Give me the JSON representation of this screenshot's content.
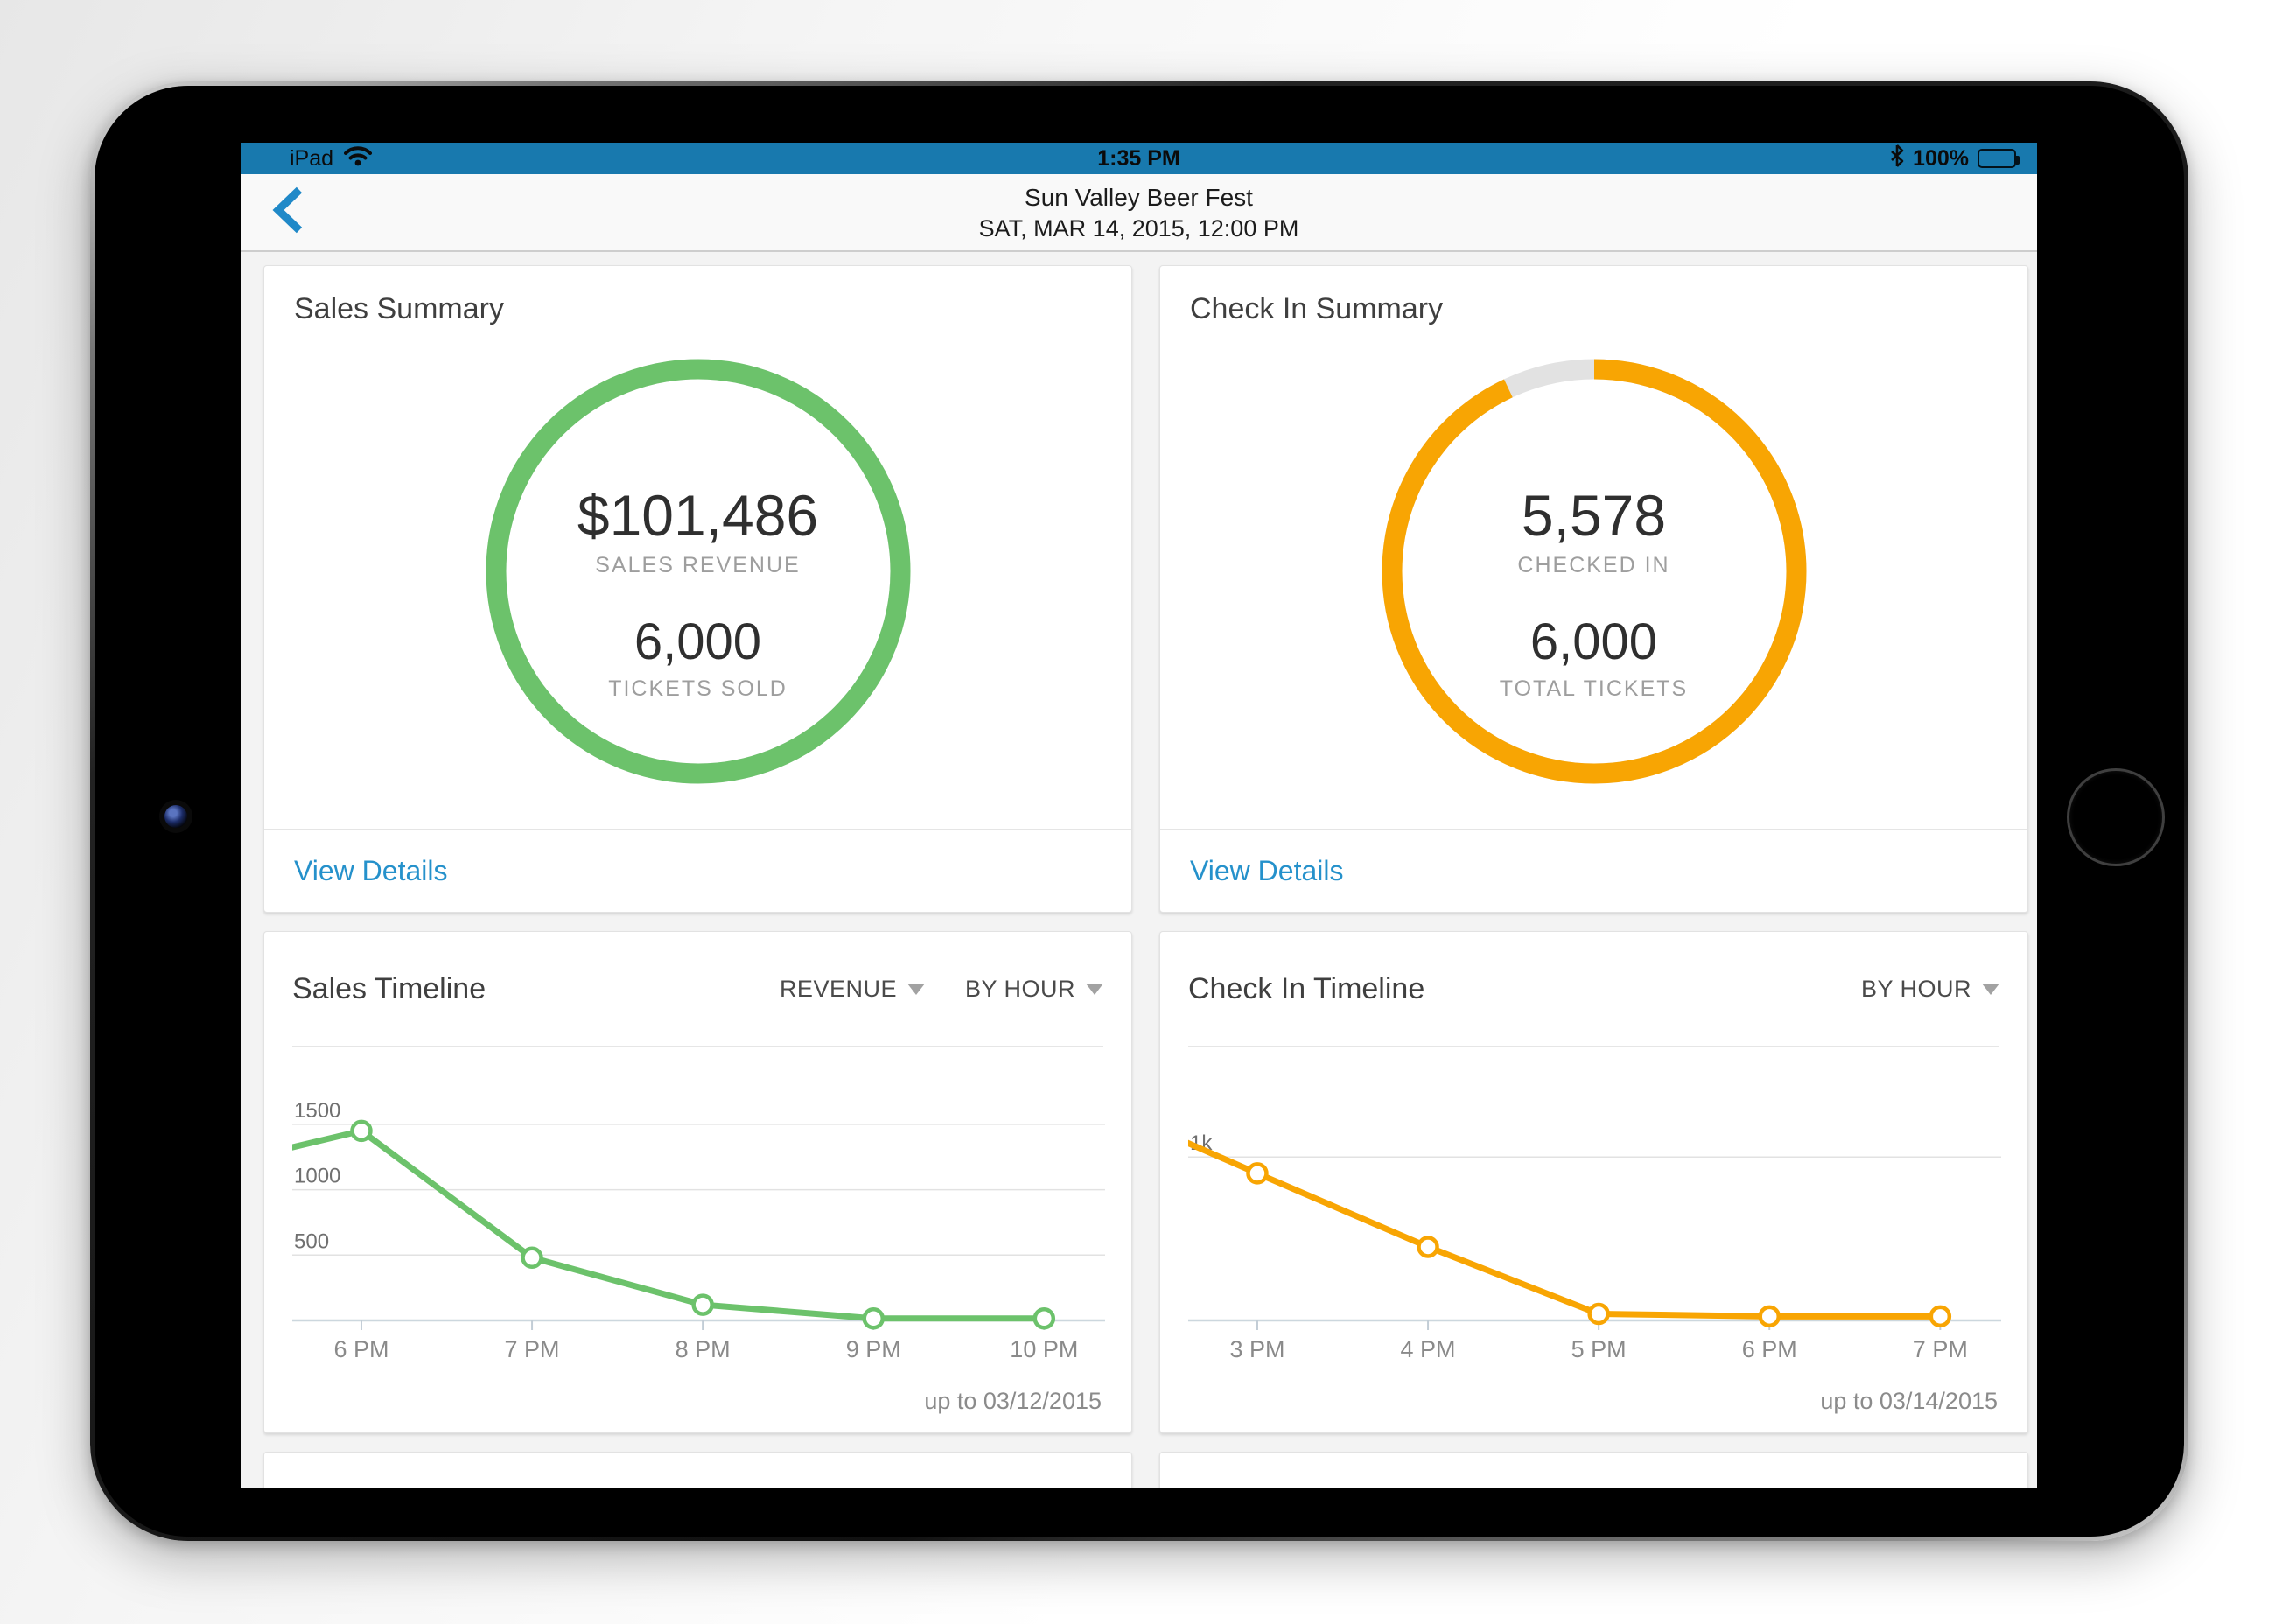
{
  "device": {
    "carrier": "iPad",
    "time": "1:35 PM",
    "battery_percent": "100%"
  },
  "nav": {
    "title": "Sun Valley Beer Fest",
    "subtitle": "SAT, MAR 14, 2015, 12:00 PM"
  },
  "colors": {
    "status_bar_blue": "#1879ae",
    "link_blue": "#2591cb",
    "back_chevron_blue": "#2089c8",
    "sales_green": "#6cc26b",
    "checkin_orange": "#f8a503",
    "ring_track_gray": "#e2e2e2"
  },
  "cards": {
    "sales_summary": {
      "title": "Sales Summary",
      "primary_value": "$101,486",
      "primary_label": "SALES REVENUE",
      "secondary_value": "6,000",
      "secondary_label": "TICKETS SOLD",
      "link_label": "View Details",
      "ring": {
        "color": "#6cc26b",
        "track": "#e2e2e2",
        "progress": 1
      }
    },
    "checkin_summary": {
      "title": "Check In Summary",
      "primary_value": "5,578",
      "primary_label": "CHECKED IN",
      "secondary_value": "6,000",
      "secondary_label": "TOTAL TICKETS",
      "link_label": "View Details",
      "ring": {
        "color": "#f8a503",
        "track": "#e2e2e2",
        "progress": 0.93
      }
    },
    "sales_timeline": {
      "filter_metric": "REVENUE",
      "filter_interval": "BY HOUR"
    },
    "checkin_timeline": {
      "filter_interval": "BY HOUR"
    }
  },
  "chart_data": [
    {
      "type": "line",
      "name": "sales",
      "title": "Sales Timeline",
      "categories": [
        "6 PM",
        "7 PM",
        "8 PM",
        "9 PM",
        "10 PM"
      ],
      "values": [
        1450,
        480,
        120,
        15,
        15
      ],
      "lead_in_value": 1280,
      "ylabels": [
        {
          "value": 500,
          "label": "500"
        },
        {
          "value": 1000,
          "label": "1000"
        },
        {
          "value": 1500,
          "label": "1500"
        }
      ],
      "ylim": [
        0,
        1700
      ],
      "color": "#6cc26b",
      "footnote": "up to 03/12/2015"
    },
    {
      "type": "line",
      "name": "checkin",
      "title": "Check In Timeline",
      "categories": [
        "3 PM",
        "4 PM",
        "5 PM",
        "6 PM",
        "7 PM"
      ],
      "values": [
        900,
        450,
        40,
        25,
        25
      ],
      "lead_in_value": 1150,
      "ylabels": [
        {
          "value": 1000,
          "label": "1k"
        }
      ],
      "ylim": [
        0,
        1360
      ],
      "color": "#f8a503",
      "footnote": "up to 03/14/2015"
    }
  ]
}
